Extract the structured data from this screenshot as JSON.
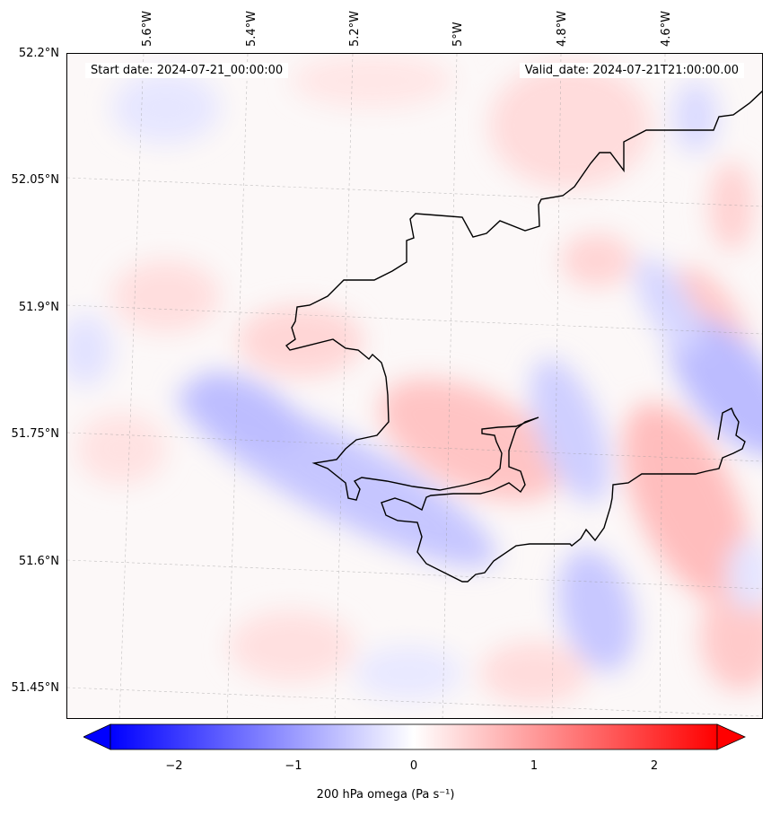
{
  "map": {
    "start_date": "Start date: 2024-07-21_00:00:00",
    "valid_date": "Valid_date: 2024-07-21T21:00:00.00",
    "lon_labels": [
      "5.6°W",
      "5.4°W",
      "5.2°W",
      "5°W",
      "4.8°W",
      "4.6°W"
    ],
    "lat_labels": [
      "52.2°N",
      "52.05°N",
      "51.9°N",
      "51.75°N",
      "51.6°N",
      "51.45°N"
    ]
  },
  "colorbar": {
    "label": "200 hPa omega (Pa s⁻¹)",
    "ticks": [
      "−2",
      "−1",
      "0",
      "1",
      "2"
    ],
    "range": [
      -2.5,
      2.5
    ],
    "colors": {
      "low": "#0000ff",
      "mid": "#ffffff",
      "high": "#ff0000"
    }
  }
}
